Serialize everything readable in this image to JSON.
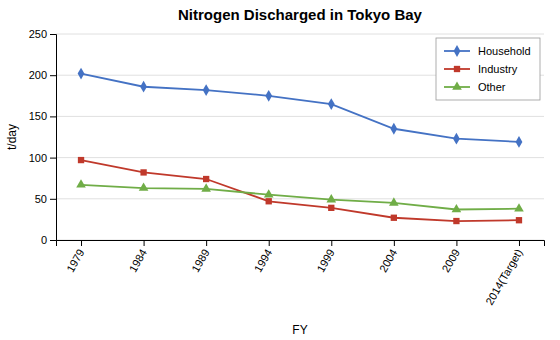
{
  "chart_data": {
    "type": "line",
    "title": "Nitrogen Discharged in Tokyo Bay",
    "xlabel": "FY",
    "ylabel": "t/day",
    "categories": [
      "1979",
      "1984",
      "1989",
      "1994",
      "1999",
      "2004",
      "2009",
      "2014(Target)"
    ],
    "series": [
      {
        "name": "Household",
        "color": "#4472C4",
        "marker": "diamond",
        "values": [
          202,
          186,
          182,
          175,
          165,
          135,
          123,
          119
        ]
      },
      {
        "name": "Industry",
        "color": "#C0392B",
        "marker": "square",
        "values": [
          97,
          82,
          74,
          47,
          39,
          27,
          23,
          24
        ]
      },
      {
        "name": "Other",
        "color": "#70AD47",
        "marker": "triangle",
        "values": [
          67,
          63,
          62,
          55,
          49,
          45,
          37,
          38
        ]
      }
    ],
    "ylim": [
      0,
      250
    ],
    "yticks": [
      0,
      50,
      100,
      150,
      200,
      250
    ],
    "grid": true,
    "legend": "upper right"
  }
}
